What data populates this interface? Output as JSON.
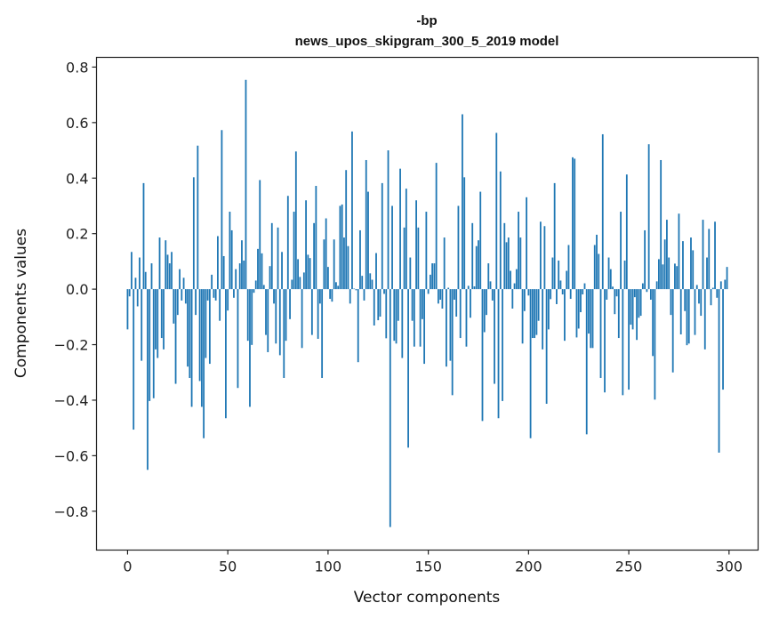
{
  "chart_data": {
    "type": "bar",
    "title_line1": "-bp",
    "title_line2": "news_upos_skipgram_300_5_2019 model",
    "xlabel": "Vector components",
    "ylabel": "Components values",
    "xlim": [
      -15.5,
      314.5
    ],
    "ylim": [
      -0.94,
      0.835
    ],
    "xticks": [
      0,
      50,
      100,
      150,
      200,
      250,
      300
    ],
    "xtick_labels": [
      "0",
      "50",
      "100",
      "150",
      "200",
      "250",
      "300"
    ],
    "yticks": [
      0.8,
      0.6,
      0.4,
      0.2,
      0.0,
      -0.2,
      -0.4,
      -0.6,
      -0.8
    ],
    "ytick_labels": [
      "0.8",
      "0.6",
      "0.4",
      "0.2",
      "0.0",
      "−0.2",
      "−0.4",
      "−0.6",
      "−0.8"
    ],
    "grid": false,
    "bar_color": "#1f77b4",
    "values": [
      -0.145,
      -0.026,
      0.134,
      -0.506,
      0.041,
      -0.062,
      0.114,
      -0.258,
      0.382,
      0.062,
      -0.651,
      -0.403,
      0.093,
      -0.393,
      -0.217,
      -0.248,
      0.186,
      -0.176,
      -0.217,
      0.176,
      0.124,
      0.093,
      0.134,
      -0.124,
      -0.341,
      -0.093,
      0.072,
      -0.041,
      0.041,
      -0.052,
      -0.279,
      -0.32,
      -0.424,
      0.403,
      -0.093,
      0.517,
      -0.331,
      -0.424,
      -0.537,
      -0.248,
      -0.041,
      -0.269,
      0.052,
      -0.031,
      -0.041,
      0.191,
      -0.114,
      0.573,
      0.119,
      -0.465,
      -0.077,
      0.279,
      0.212,
      -0.031,
      0.072,
      -0.356,
      0.093,
      0.176,
      0.103,
      0.754,
      -0.186,
      -0.424,
      -0.201,
      -0.013,
      0.031,
      0.145,
      0.393,
      0.129,
      0.015,
      -0.165,
      -0.227,
      0.083,
      0.238,
      -0.052,
      -0.196,
      0.222,
      -0.238,
      0.134,
      -0.32,
      -0.186,
      0.336,
      -0.108,
      0.034,
      0.279,
      0.496,
      0.108,
      0.044,
      -0.212,
      0.06,
      0.32,
      0.124,
      0.112,
      -0.165,
      0.238,
      0.372,
      -0.179,
      -0.052,
      -0.32,
      0.179,
      0.255,
      0.08,
      -0.035,
      -0.045,
      0.179,
      0.025,
      0.012,
      0.3,
      0.305,
      0.186,
      0.429,
      0.155,
      -0.052,
      0.568,
      0.002,
      -0.004,
      -0.263,
      0.212,
      0.048,
      -0.041,
      0.465,
      0.351,
      0.057,
      0.034,
      -0.131,
      0.13,
      -0.112,
      -0.099,
      0.382,
      -0.017,
      -0.177,
      0.5,
      -0.857,
      0.3,
      -0.186,
      -0.196,
      -0.114,
      0.434,
      -0.248,
      0.222,
      0.362,
      -0.571,
      0.114,
      -0.114,
      -0.207,
      0.32,
      0.222,
      -0.207,
      -0.108,
      -0.269,
      0.279,
      -0.017,
      0.052,
      0.093,
      0.093,
      0.455,
      -0.052,
      -0.038,
      -0.07,
      0.186,
      -0.279,
      0.005,
      -0.258,
      -0.382,
      -0.038,
      -0.099,
      0.3,
      -0.176,
      0.63,
      0.403,
      -0.207,
      0.012,
      -0.103,
      0.238,
      0.01,
      0.155,
      0.176,
      0.351,
      -0.475,
      -0.155,
      -0.093,
      0.093,
      0.028,
      -0.041,
      -0.341,
      0.563,
      -0.465,
      0.424,
      -0.403,
      0.238,
      0.169,
      0.186,
      0.066,
      -0.07,
      0.021,
      0.072,
      0.279,
      0.186,
      -0.196,
      -0.079,
      0.331,
      -0.023,
      -0.537,
      -0.176,
      -0.176,
      -0.165,
      -0.114,
      0.243,
      -0.217,
      0.227,
      -0.413,
      -0.145,
      -0.036,
      0.114,
      0.382,
      -0.054,
      0.103,
      0.031,
      -0.019,
      -0.186,
      0.066,
      0.159,
      -0.035,
      0.475,
      0.47,
      -0.174,
      -0.142,
      -0.083,
      -0.019,
      0.021,
      -0.523,
      -0.16,
      -0.212,
      -0.212,
      0.159,
      0.196,
      0.127,
      -0.32,
      0.558,
      -0.372,
      -0.038,
      0.114,
      0.072,
      0.009,
      -0.09,
      -0.026,
      -0.176,
      0.279,
      -0.382,
      0.103,
      0.413,
      -0.362,
      -0.128,
      -0.145,
      -0.029,
      -0.183,
      -0.103,
      -0.096,
      0.021,
      0.212,
      -0.01,
      0.522,
      -0.038,
      -0.241,
      -0.398,
      0.028,
      0.108,
      0.465,
      0.089,
      0.179,
      0.25,
      0.114,
      -0.093,
      -0.3,
      0.092,
      0.083,
      0.272,
      -0.163,
      0.173,
      -0.079,
      -0.202,
      -0.196,
      0.186,
      0.14,
      -0.165,
      0.015,
      -0.052,
      -0.096,
      0.25,
      -0.217,
      0.114,
      0.217,
      -0.058,
      0.005,
      0.243,
      -0.031,
      -0.589,
      0.028,
      -0.362,
      0.034,
      0.08
    ]
  }
}
